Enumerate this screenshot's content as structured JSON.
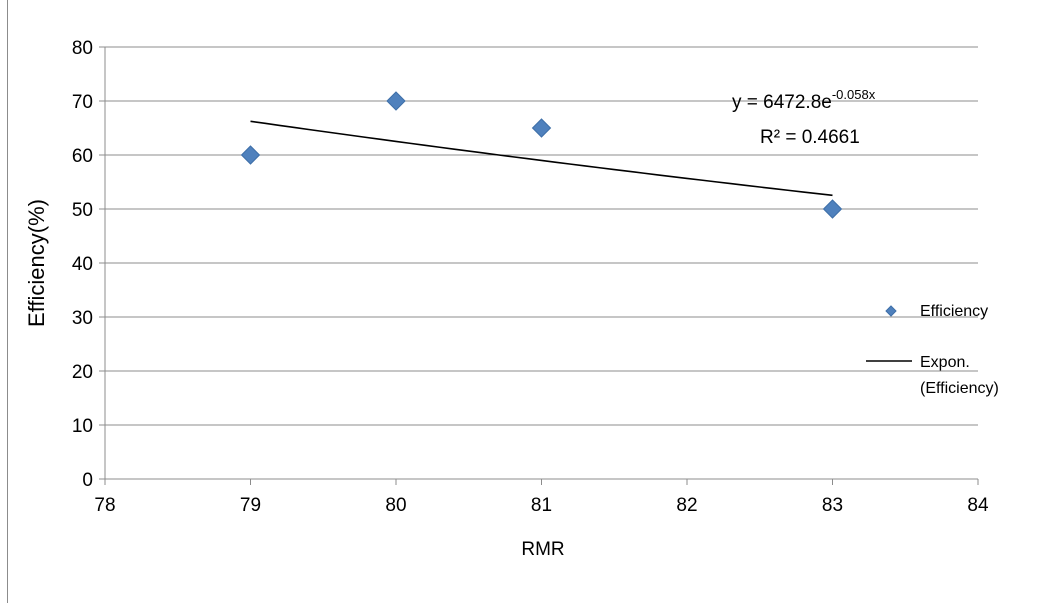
{
  "chart_data": {
    "type": "scatter",
    "xlabel": "RMR",
    "ylabel": "Efficiency(%)",
    "xlim": [
      78,
      84
    ],
    "ylim": [
      0,
      80
    ],
    "x_ticks": [
      "78",
      "79",
      "80",
      "81",
      "82",
      "83",
      "84"
    ],
    "y_ticks": [
      "0",
      "10",
      "20",
      "30",
      "40",
      "50",
      "60",
      "70",
      "80"
    ],
    "grid": "horizontal",
    "series": [
      {
        "name": "Efficiency",
        "marker": "diamond",
        "color": "#4f81bd",
        "points": [
          {
            "x": 79,
            "y": 60
          },
          {
            "x": 80,
            "y": 70
          },
          {
            "x": 81,
            "y": 65
          },
          {
            "x": 83,
            "y": 50
          }
        ]
      }
    ],
    "trendline": {
      "name_line1": "Expon.",
      "name_line2": "(Efficiency)",
      "type": "exponential",
      "a": 6472.8,
      "b": -0.058,
      "x_range": [
        79,
        83
      ],
      "color": "#000000",
      "equation_prefix": "y = 6472.8e",
      "equation_exponent": "-0.058x",
      "r_squared": "R² = 0.4661"
    },
    "legend_position": "right"
  }
}
